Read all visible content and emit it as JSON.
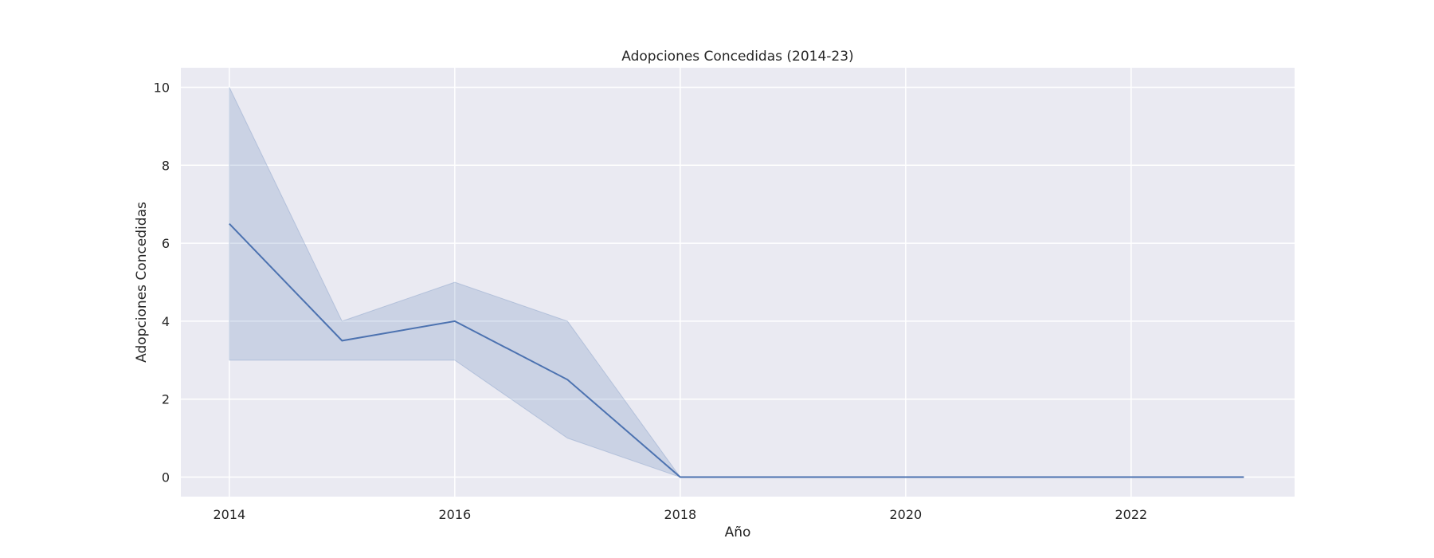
{
  "chart_data": {
    "type": "line",
    "title": "Adopciones Concedidas (2014-23)",
    "xlabel": "Año",
    "ylabel": "Adopciones Concedidas",
    "x": [
      2014,
      2015,
      2016,
      2017,
      2018,
      2019,
      2020,
      2021,
      2022,
      2023
    ],
    "series": [
      {
        "values": [
          6.5,
          3.5,
          4.0,
          2.5,
          0,
          0,
          0,
          0,
          0,
          0
        ],
        "ci_lower": [
          3.0,
          3.0,
          3.0,
          1.0,
          0,
          0,
          0,
          0,
          0,
          0
        ],
        "ci_upper": [
          10.0,
          4.0,
          5.0,
          4.0,
          0,
          0,
          0,
          0,
          0,
          0
        ],
        "color": "#4c72b0"
      }
    ],
    "xlim": [
      2013.57,
      2023.45
    ],
    "ylim": [
      -0.5,
      10.5
    ],
    "xticks": [
      2014,
      2016,
      2018,
      2020,
      2022
    ],
    "yticks": [
      0,
      2,
      4,
      6,
      8,
      10
    ],
    "grid": true,
    "background": "#eaeaf2",
    "grid_color": "#ffffff"
  }
}
